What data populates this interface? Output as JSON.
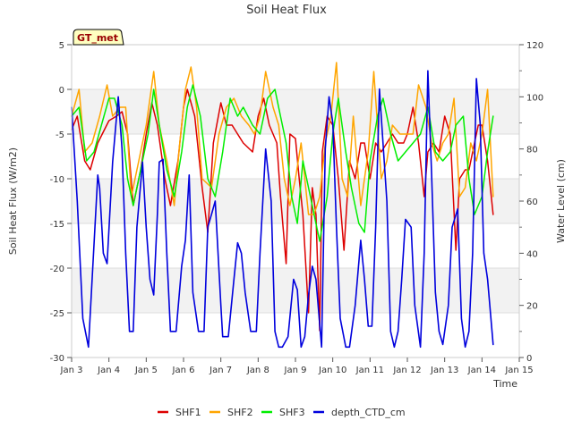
{
  "chart_data": {
    "type": "line",
    "title": "Soil Heat Flux",
    "xlabel": "Time",
    "ylabel": "Soil Heat Flux (W/m2)",
    "y2label": "Water Level (cm)",
    "badge": "GT_met",
    "xlim": [
      3,
      15
    ],
    "ylim": [
      -30,
      5
    ],
    "y2lim": [
      0,
      120
    ],
    "xticks": [
      3,
      4,
      5,
      6,
      7,
      8,
      9,
      10,
      11,
      12,
      13,
      14,
      15
    ],
    "xtick_labels": [
      "Jan 3",
      "Jan 4",
      "Jan 5",
      "Jan 6",
      "Jan 7",
      "Jan 8",
      "Jan 9",
      "Jan 10",
      "Jan 11",
      "Jan 12",
      "Jan 13",
      "Jan 14",
      "Jan 15"
    ],
    "yticks": [
      5,
      0,
      -5,
      -10,
      -15,
      -20,
      -25,
      -30
    ],
    "y2ticks": [
      120,
      100,
      80,
      60,
      40,
      20,
      0
    ],
    "legend_position": "bottom-center",
    "series": [
      {
        "name": "SHF1",
        "color": "#dd0000",
        "axis": "left",
        "x": [
          3.0,
          3.15,
          3.35,
          3.5,
          3.7,
          4.0,
          4.2,
          4.35,
          4.5,
          4.65,
          4.85,
          5.0,
          5.15,
          5.3,
          5.5,
          5.65,
          5.85,
          6.0,
          6.1,
          6.3,
          6.5,
          6.65,
          6.8,
          7.0,
          7.15,
          7.3,
          7.45,
          7.6,
          7.85,
          8.0,
          8.15,
          8.3,
          8.5,
          8.6,
          8.75,
          8.85,
          9.0,
          9.1,
          9.2,
          9.35,
          9.45,
          9.55,
          9.65,
          9.72,
          9.85,
          10.0,
          10.15,
          10.3,
          10.45,
          10.6,
          10.75,
          10.85,
          11.0,
          11.15,
          11.3,
          11.45,
          11.6,
          11.75,
          11.9,
          12.0,
          12.15,
          12.3,
          12.45,
          12.55,
          12.7,
          12.85,
          13.0,
          13.15,
          13.3,
          13.4,
          13.55,
          13.65,
          13.8,
          13.9,
          14.0,
          14.15,
          14.3
        ],
        "y": [
          -4.5,
          -3,
          -8,
          -9,
          -6,
          -3.5,
          -3,
          -2.5,
          -5,
          -13,
          -9,
          -5,
          -1.5,
          -4,
          -10,
          -13,
          -8,
          -2,
          0,
          -3,
          -11,
          -16,
          -6,
          -1.5,
          -4,
          -4,
          -5,
          -6,
          -7,
          -3,
          -1,
          -4,
          -6,
          -12,
          -19.5,
          -5,
          -5.5,
          -10,
          -14,
          -25,
          -11,
          -14,
          -27,
          -7,
          -3,
          -4,
          -10,
          -18,
          -8,
          -10,
          -6,
          -6,
          -10,
          -6,
          -7,
          -6,
          -5,
          -6,
          -6,
          -5,
          -2,
          -6,
          -12,
          -7,
          -6,
          -7,
          -3,
          -5,
          -18,
          -10,
          -9,
          -9,
          -6,
          -4,
          -4,
          -8,
          -14
        ]
      },
      {
        "name": "SHF2",
        "color": "#ffa500",
        "axis": "left",
        "x": [
          3.0,
          3.2,
          3.35,
          3.55,
          3.75,
          3.95,
          4.1,
          4.3,
          4.45,
          4.6,
          4.8,
          5.0,
          5.2,
          5.35,
          5.55,
          5.75,
          5.9,
          6.05,
          6.2,
          6.35,
          6.5,
          6.75,
          6.95,
          7.15,
          7.35,
          7.55,
          7.75,
          7.9,
          8.05,
          8.2,
          8.4,
          8.55,
          8.7,
          8.85,
          9.0,
          9.15,
          9.35,
          9.5,
          9.65,
          9.8,
          9.95,
          10.1,
          10.25,
          10.4,
          10.55,
          10.75,
          10.95,
          11.1,
          11.3,
          11.45,
          11.6,
          11.8,
          12.0,
          12.15,
          12.3,
          12.5,
          12.65,
          12.8,
          12.95,
          13.1,
          13.25,
          13.4,
          13.55,
          13.7,
          13.85,
          14.0,
          14.15,
          14.3
        ],
        "y": [
          -3,
          0,
          -7,
          -6,
          -3,
          0.5,
          -3,
          -2,
          -2,
          -12,
          -8,
          -4,
          2,
          -4,
          -8,
          -13,
          -6,
          0,
          2.5,
          -2,
          -10,
          -11,
          -5,
          -2,
          -1,
          -3,
          -4,
          -5,
          -3,
          2,
          -2,
          -4,
          -10,
          -13,
          -10,
          -6,
          -14,
          -14,
          -12,
          -6,
          -3,
          3,
          -10,
          -12,
          -3,
          -13,
          -7,
          2,
          -10,
          -8,
          -4,
          -5,
          -5,
          -5,
          0.5,
          -2,
          -6,
          -8,
          -6,
          -5,
          -1,
          -12,
          -11,
          -6,
          -8,
          -5,
          0,
          -12
        ]
      },
      {
        "name": "SHF3",
        "color": "#00ee00",
        "axis": "left",
        "x": [
          3.0,
          3.2,
          3.4,
          3.6,
          3.8,
          4.0,
          4.15,
          4.35,
          4.5,
          4.65,
          4.85,
          5.05,
          5.2,
          5.35,
          5.55,
          5.75,
          5.95,
          6.1,
          6.25,
          6.45,
          6.65,
          6.85,
          7.05,
          7.25,
          7.45,
          7.6,
          7.85,
          8.05,
          8.25,
          8.45,
          8.6,
          8.75,
          8.9,
          9.05,
          9.2,
          9.4,
          9.55,
          9.65,
          9.85,
          10.0,
          10.15,
          10.35,
          10.5,
          10.7,
          10.85,
          11.0,
          11.2,
          11.35,
          11.55,
          11.75,
          11.95,
          12.15,
          12.35,
          12.55,
          12.75,
          12.95,
          13.15,
          13.3,
          13.5,
          13.65,
          13.8,
          14.0,
          14.15,
          14.3
        ],
        "y": [
          -3,
          -2,
          -8,
          -7,
          -4,
          -1,
          -1,
          -4,
          -10,
          -13,
          -9,
          -5,
          0,
          -4,
          -9,
          -12,
          -7,
          -2,
          0.5,
          -3,
          -10,
          -12,
          -7,
          -1,
          -3,
          -2,
          -4,
          -5,
          -1,
          0,
          -3,
          -6,
          -12,
          -15,
          -8,
          -12,
          -15,
          -17,
          -12,
          -5,
          -1,
          -7,
          -11,
          -15,
          -16,
          -8,
          -3,
          -1,
          -5,
          -8,
          -7,
          -6,
          -5,
          -2,
          -7,
          -8,
          -7,
          -4,
          -3,
          -10,
          -14,
          -12,
          -7,
          -3
        ]
      },
      {
        "name": "depth_CTD_cm",
        "color": "#0000dd",
        "axis": "right",
        "x": [
          3.0,
          3.15,
          3.3,
          3.45,
          3.55,
          3.7,
          3.75,
          3.85,
          3.95,
          4.1,
          4.25,
          4.35,
          4.45,
          4.55,
          4.65,
          4.75,
          4.9,
          5.0,
          5.1,
          5.2,
          5.3,
          5.35,
          5.45,
          5.55,
          5.65,
          5.8,
          5.95,
          6.05,
          6.15,
          6.25,
          6.4,
          6.55,
          6.65,
          6.75,
          6.85,
          7.0,
          7.05,
          7.2,
          7.35,
          7.45,
          7.55,
          7.65,
          7.8,
          7.95,
          8.05,
          8.2,
          8.35,
          8.45,
          8.55,
          8.65,
          8.8,
          8.95,
          9.05,
          9.15,
          9.25,
          9.35,
          9.45,
          9.55,
          9.7,
          9.8,
          9.9,
          10.0,
          10.1,
          10.2,
          10.35,
          10.45,
          10.6,
          10.75,
          10.85,
          10.95,
          11.05,
          11.15,
          11.25,
          11.45,
          11.55,
          11.65,
          11.75,
          11.85,
          11.95,
          12.1,
          12.2,
          12.35,
          12.45,
          12.55,
          12.65,
          12.75,
          12.85,
          12.95,
          13.1,
          13.2,
          13.35,
          13.45,
          13.55,
          13.65,
          13.75,
          13.85,
          13.95,
          14.05,
          14.15,
          14.3
        ],
        "y": [
          96,
          60,
          15,
          4,
          30,
          70,
          65,
          40,
          36,
          75,
          100,
          80,
          40,
          10,
          10,
          50,
          75,
          50,
          30,
          24,
          55,
          75,
          76,
          40,
          10,
          10,
          35,
          45,
          70,
          25,
          10,
          10,
          50,
          55,
          60,
          20,
          8,
          8,
          30,
          44,
          40,
          25,
          10,
          10,
          40,
          80,
          60,
          10,
          4,
          4,
          8,
          30,
          26,
          4,
          8,
          24,
          35,
          30,
          4,
          80,
          100,
          90,
          50,
          15,
          4,
          4,
          20,
          45,
          30,
          12,
          12,
          50,
          103,
          60,
          10,
          4,
          10,
          30,
          53,
          50,
          20,
          4,
          40,
          110,
          70,
          25,
          10,
          5,
          20,
          50,
          57,
          15,
          4,
          10,
          40,
          107,
          90,
          40,
          30,
          5
        ]
      }
    ]
  }
}
